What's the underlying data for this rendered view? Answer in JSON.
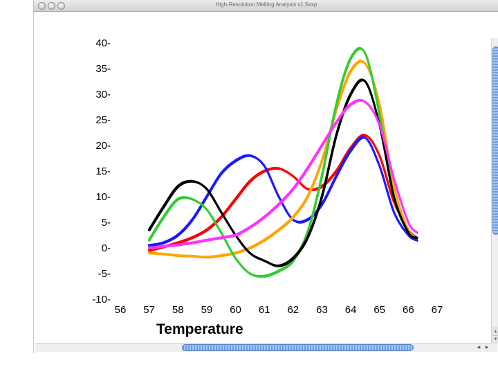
{
  "window": {
    "title": "High-Resolution Melting Analysis v1.5exp"
  },
  "chart_data": {
    "type": "line",
    "xlabel": "Temperature",
    "ylabel": "",
    "xlim": [
      56,
      67
    ],
    "ylim": [
      -10,
      40
    ],
    "xticks": [
      56,
      57,
      58,
      59,
      60,
      61,
      62,
      63,
      64,
      65,
      66,
      67
    ],
    "yticks": [
      -10,
      -5,
      0,
      5,
      10,
      15,
      20,
      25,
      30,
      35,
      40
    ],
    "x": [
      57,
      57.5,
      58,
      58.5,
      59,
      59.5,
      60,
      60.5,
      61,
      61.5,
      62,
      62.5,
      63,
      63.5,
      64,
      64.5,
      65,
      65.5,
      66,
      66.3
    ],
    "series": [
      {
        "color": "#ff0000",
        "values": [
          -0.5,
          0.2,
          1.0,
          2.0,
          3.5,
          6.0,
          9.5,
          13.0,
          15.0,
          15.5,
          14.0,
          11.5,
          12.0,
          15.0,
          19.5,
          22.0,
          18.0,
          9.0,
          3.5,
          2.0
        ]
      },
      {
        "color": "#1a1aff",
        "values": [
          0.5,
          1.0,
          2.5,
          5.5,
          10.0,
          14.5,
          17.0,
          18.0,
          16.0,
          10.0,
          5.5,
          5.5,
          8.5,
          14.0,
          19.0,
          21.5,
          16.0,
          7.0,
          2.5,
          1.5
        ]
      },
      {
        "color": "#000000",
        "values": [
          3.5,
          8.0,
          12.0,
          13.0,
          11.5,
          7.0,
          2.5,
          -1.0,
          -2.5,
          -3.5,
          -2.0,
          2.0,
          10.0,
          22.0,
          30.0,
          32.5,
          24.0,
          10.0,
          3.0,
          2.0
        ]
      },
      {
        "color": "#33cc33",
        "values": [
          1.5,
          6.0,
          9.5,
          9.5,
          7.5,
          3.0,
          -2.0,
          -5.0,
          -5.5,
          -4.5,
          -2.5,
          3.0,
          14.0,
          28.0,
          37.0,
          38.0,
          26.0,
          10.0,
          3.0,
          2.0
        ]
      },
      {
        "color": "#ffa500",
        "values": [
          -1.0,
          -1.2,
          -1.5,
          -1.6,
          -1.8,
          -1.5,
          -1.0,
          0.0,
          1.5,
          3.5,
          6.0,
          10.0,
          17.0,
          27.0,
          34.5,
          36.0,
          28.0,
          12.0,
          3.5,
          2.0
        ]
      },
      {
        "color": "#ff33ff",
        "values": [
          0.0,
          0.3,
          0.6,
          1.0,
          1.5,
          2.0,
          2.5,
          4.0,
          6.0,
          8.5,
          11.5,
          15.5,
          20.0,
          24.5,
          28.0,
          28.5,
          24.0,
          13.5,
          5.0,
          3.0
        ]
      }
    ]
  }
}
